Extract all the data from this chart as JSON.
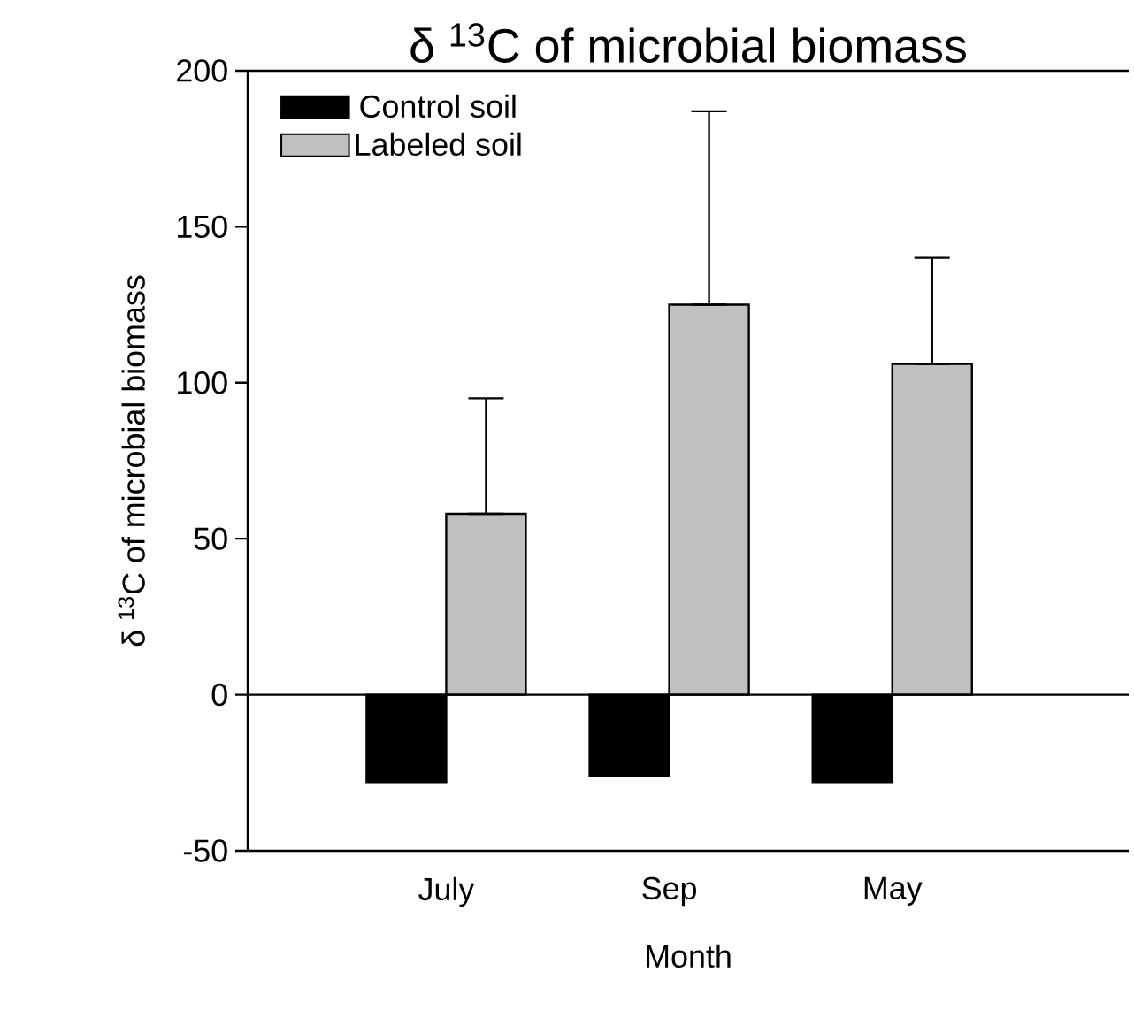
{
  "chart_data": {
    "type": "bar",
    "title": "δ $^{13}$C of microbial biomass",
    "xlabel": "Month",
    "ylabel": "δ $^{13}$C of microbial biomass",
    "categories": [
      "July",
      "Sep",
      "May"
    ],
    "series": [
      {
        "name": "Control soil",
        "color": "#000000",
        "values": [
          -28,
          -26,
          -28
        ]
      },
      {
        "name": "Labeled soil",
        "color": "#c0c0c0",
        "values": [
          58,
          125,
          106
        ],
        "errors": [
          [
            58,
            95
          ],
          [
            125,
            187
          ],
          [
            106,
            140
          ]
        ]
      }
    ],
    "ylim": [
      -50,
      200
    ],
    "yticks": [
      -50,
      0,
      50,
      100,
      150,
      200
    ],
    "ref_lines": [
      {
        "axis": "y",
        "value": 0
      }
    ],
    "legend": "top left",
    "grid": false
  }
}
